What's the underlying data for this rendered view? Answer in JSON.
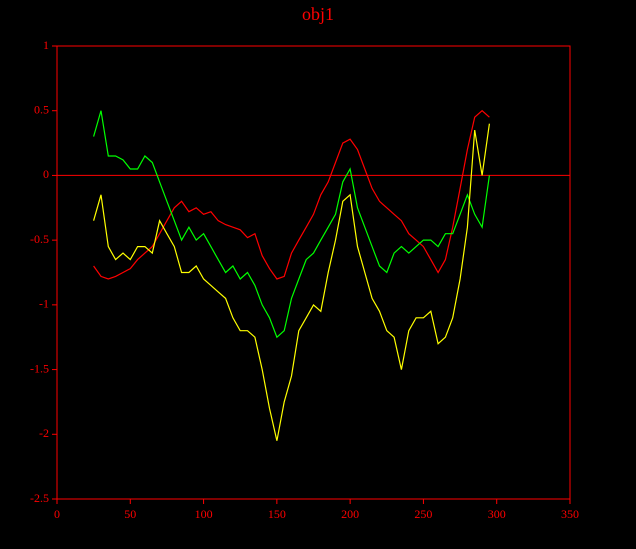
{
  "chart_data": {
    "type": "line",
    "title": "obj1",
    "x": [
      25,
      30,
      35,
      40,
      45,
      50,
      55,
      60,
      65,
      70,
      75,
      80,
      85,
      90,
      95,
      100,
      105,
      110,
      115,
      120,
      125,
      130,
      135,
      140,
      145,
      150,
      155,
      160,
      165,
      170,
      175,
      180,
      185,
      190,
      195,
      200,
      205,
      210,
      215,
      220,
      225,
      230,
      235,
      240,
      245,
      250,
      255,
      260,
      265,
      270,
      275,
      280,
      285,
      290,
      295
    ],
    "series": [
      {
        "color": "#ff0000",
        "values": [
          -0.7,
          -0.78,
          -0.8,
          -0.78,
          -0.75,
          -0.72,
          -0.65,
          -0.6,
          -0.55,
          -0.45,
          -0.35,
          -0.25,
          -0.2,
          -0.28,
          -0.25,
          -0.3,
          -0.28,
          -0.35,
          -0.38,
          -0.4,
          -0.42,
          -0.48,
          -0.45,
          -0.62,
          -0.72,
          -0.8,
          -0.78,
          -0.6,
          -0.5,
          -0.4,
          -0.3,
          -0.15,
          -0.05,
          0.1,
          0.25,
          0.28,
          0.2,
          0.05,
          -0.1,
          -0.2,
          -0.25,
          -0.3,
          -0.35,
          -0.45,
          -0.5,
          -0.55,
          -0.65,
          -0.75,
          -0.65,
          -0.4,
          -0.1,
          0.2,
          0.45,
          0.5,
          0.45
        ]
      },
      {
        "color": "#00ff00",
        "values": [
          0.3,
          0.5,
          0.15,
          0.15,
          0.12,
          0.05,
          0.05,
          0.15,
          0.1,
          -0.05,
          -0.2,
          -0.35,
          -0.5,
          -0.4,
          -0.5,
          -0.45,
          -0.55,
          -0.65,
          -0.75,
          -0.7,
          -0.8,
          -0.75,
          -0.85,
          -1.0,
          -1.1,
          -1.25,
          -1.2,
          -0.95,
          -0.8,
          -0.65,
          -0.6,
          -0.5,
          -0.4,
          -0.3,
          -0.05,
          0.05,
          -0.25,
          -0.4,
          -0.55,
          -0.7,
          -0.75,
          -0.6,
          -0.55,
          -0.6,
          -0.55,
          -0.5,
          -0.5,
          -0.55,
          -0.45,
          -0.45,
          -0.3,
          -0.15,
          -0.3,
          -0.4,
          0.0
        ]
      },
      {
        "color": "#ffff00",
        "values": [
          -0.35,
          -0.15,
          -0.55,
          -0.65,
          -0.6,
          -0.65,
          -0.55,
          -0.55,
          -0.6,
          -0.35,
          -0.45,
          -0.55,
          -0.75,
          -0.75,
          -0.7,
          -0.8,
          -0.85,
          -0.9,
          -0.95,
          -1.1,
          -1.2,
          -1.2,
          -1.25,
          -1.5,
          -1.8,
          -2.05,
          -1.75,
          -1.55,
          -1.2,
          -1.1,
          -1.0,
          -1.05,
          -0.75,
          -0.5,
          -0.2,
          -0.15,
          -0.55,
          -0.75,
          -0.95,
          -1.05,
          -1.2,
          -1.25,
          -1.5,
          -1.2,
          -1.1,
          -1.1,
          -1.05,
          -1.3,
          -1.25,
          -1.1,
          -0.8,
          -0.4,
          0.35,
          0.0,
          0.4
        ]
      }
    ],
    "xlim": [
      0,
      350
    ],
    "xticks": [
      0,
      50,
      100,
      150,
      200,
      250,
      300,
      350
    ],
    "ylim": [
      -2.5,
      1
    ],
    "yticks": [
      -2.5,
      -2,
      -1.5,
      -1,
      -0.5,
      0,
      0.5,
      1
    ],
    "hlines": [
      0
    ],
    "axis_color": "#ff0000",
    "background": "#000000"
  }
}
